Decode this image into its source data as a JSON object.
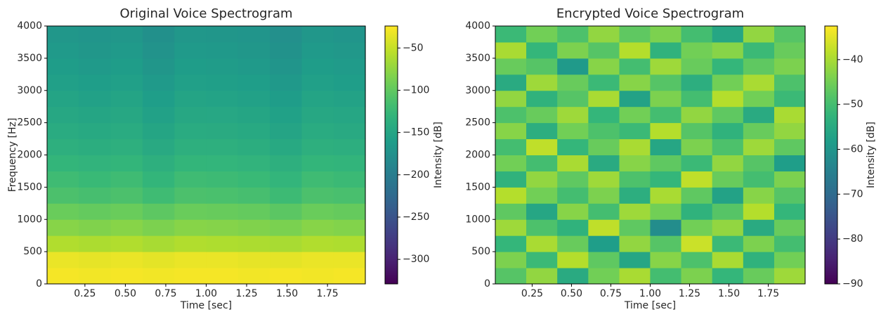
{
  "chart_data": [
    {
      "type": "heatmap",
      "title": "Original Voice Spectrogram",
      "xlabel": "Time [sec]",
      "ylabel": "Frequency [Hz]",
      "colorbar_label": "Intensity [dB]",
      "colormap": "viridis",
      "x": [
        0.114,
        0.311,
        0.508,
        0.705,
        0.902,
        1.098,
        1.295,
        1.492,
        1.689,
        1.886
      ],
      "y": [
        125,
        375,
        625,
        875,
        1125,
        1375,
        1625,
        1875,
        2125,
        2375,
        2625,
        2875,
        3125,
        3375,
        3625,
        3875
      ],
      "z": [
        [
          -28,
          -29,
          -28,
          -29,
          -28,
          -28,
          -29,
          -28,
          -29,
          -28
        ],
        [
          -33,
          -35,
          -33,
          -36,
          -33,
          -33,
          -35,
          -36,
          -33,
          -33
        ],
        [
          -60,
          -62,
          -60,
          -64,
          -60,
          -61,
          -62,
          -64,
          -60,
          -61
        ],
        [
          -80,
          -83,
          -80,
          -85,
          -80,
          -81,
          -83,
          -86,
          -80,
          -82
        ],
        [
          -95,
          -98,
          -95,
          -102,
          -95,
          -96,
          -98,
          -103,
          -95,
          -97
        ],
        [
          -112,
          -115,
          -112,
          -120,
          -112,
          -113,
          -115,
          -121,
          -112,
          -114
        ],
        [
          -120,
          -123,
          -120,
          -128,
          -120,
          -121,
          -123,
          -129,
          -120,
          -122
        ],
        [
          -128,
          -131,
          -128,
          -136,
          -128,
          -129,
          -131,
          -137,
          -128,
          -130
        ],
        [
          -136,
          -139,
          -136,
          -144,
          -136,
          -137,
          -139,
          -145,
          -136,
          -138
        ],
        [
          -142,
          -145,
          -142,
          -150,
          -142,
          -143,
          -145,
          -151,
          -142,
          -144
        ],
        [
          -147,
          -150,
          -147,
          -155,
          -147,
          -148,
          -150,
          -156,
          -147,
          -149
        ],
        [
          -152,
          -155,
          -152,
          -160,
          -152,
          -153,
          -155,
          -161,
          -152,
          -154
        ],
        [
          -157,
          -160,
          -157,
          -165,
          -157,
          -158,
          -160,
          -166,
          -157,
          -159
        ],
        [
          -161,
          -164,
          -161,
          -169,
          -161,
          -162,
          -164,
          -170,
          -161,
          -163
        ],
        [
          -165,
          -168,
          -165,
          -173,
          -165,
          -166,
          -168,
          -174,
          -165,
          -167
        ],
        [
          -168,
          -171,
          -168,
          -176,
          -168,
          -169,
          -171,
          -177,
          -168,
          -170
        ]
      ],
      "xlim": [
        0.016,
        1.984
      ],
      "ylim": [
        0,
        4000
      ],
      "clim": [
        -329,
        -24
      ],
      "xticks": [
        0.25,
        {
          "value": 0.5,
          "label": "0.50"
        },
        0.75,
        {
          "value": 1,
          "label": "1.00"
        },
        1.25,
        {
          "value": 1.5,
          "label": "1.50"
        },
        1.75
      ],
      "yticks": [
        0,
        500,
        1000,
        1500,
        2000,
        2500,
        3000,
        3500,
        4000
      ],
      "cticks": [
        {
          "value": -50,
          "label": "−50"
        },
        {
          "value": -100,
          "label": "−100"
        },
        {
          "value": -150,
          "label": "−150"
        },
        {
          "value": -200,
          "label": "−200"
        },
        {
          "value": -250,
          "label": "−250"
        },
        {
          "value": -300,
          "label": "−300"
        }
      ]
    },
    {
      "type": "heatmap",
      "title": "Encrypted Voice Spectrogram",
      "xlabel": "Time [sec]",
      "colorbar_label": "Intensity [dB]",
      "colormap": "viridis",
      "x": [
        0.114,
        0.311,
        0.508,
        0.705,
        0.902,
        1.098,
        1.295,
        1.492,
        1.689,
        1.886
      ],
      "y": [
        125,
        375,
        625,
        875,
        1125,
        1375,
        1625,
        1875,
        2125,
        2375,
        2625,
        2875,
        3125,
        3375,
        3625,
        3875
      ],
      "z": [
        [
          -48,
          -42,
          -55,
          -45,
          -40,
          -50,
          -44,
          -52,
          -46,
          -41
        ],
        [
          -44,
          -51,
          -39,
          -47,
          -56,
          -43,
          -49,
          -40,
          -53,
          -45
        ],
        [
          -52,
          -40,
          -46,
          -58,
          -42,
          -48,
          -37,
          -51,
          -44,
          -50
        ],
        [
          -41,
          -49,
          -53,
          -38,
          -47,
          -62,
          -45,
          -42,
          -55,
          -46
        ],
        [
          -47,
          -56,
          -43,
          -50,
          -41,
          -45,
          -53,
          -48,
          -39,
          -52
        ],
        [
          -39,
          -45,
          -50,
          -44,
          -54,
          -40,
          -47,
          -57,
          -43,
          -48
        ],
        [
          -53,
          -42,
          -47,
          -41,
          -49,
          -52,
          -38,
          -46,
          -50,
          -44
        ],
        [
          -45,
          -50,
          -40,
          -55,
          -43,
          -47,
          -51,
          -42,
          -48,
          -58
        ],
        [
          -50,
          -38,
          -52,
          -46,
          -40,
          -56,
          -44,
          -49,
          -41,
          -47
        ],
        [
          -43,
          -54,
          -45,
          -49,
          -51,
          -39,
          -48,
          -53,
          -46,
          -42
        ],
        [
          -49,
          -46,
          -41,
          -52,
          -45,
          -50,
          -42,
          -47,
          -55,
          -40
        ],
        [
          -42,
          -53,
          -48,
          -40,
          -57,
          -44,
          -50,
          -39,
          -45,
          -51
        ],
        [
          -55,
          -41,
          -46,
          -51,
          -43,
          -48,
          -54,
          -45,
          -40,
          -49
        ],
        [
          -46,
          -48,
          -59,
          -43,
          -50,
          -41,
          -46,
          -52,
          -47,
          -44
        ],
        [
          -40,
          -52,
          -44,
          -48,
          -39,
          -53,
          -45,
          -43,
          -51,
          -46
        ],
        [
          -51,
          -45,
          -49,
          -42,
          -47,
          -44,
          -50,
          -56,
          -42,
          -48
        ]
      ],
      "xlim": [
        0.016,
        1.984
      ],
      "ylim": [
        0,
        4000
      ],
      "clim": [
        -90,
        -32.5
      ],
      "xticks": [
        0.25,
        {
          "value": 0.5,
          "label": "0.50"
        },
        0.75,
        {
          "value": 1,
          "label": "1.00"
        },
        1.25,
        {
          "value": 1.5,
          "label": "1.50"
        },
        1.75
      ],
      "yticks": [
        0,
        500,
        1000,
        1500,
        2000,
        2500,
        3000,
        3500,
        4000
      ],
      "cticks": [
        {
          "value": -40,
          "label": "−40"
        },
        {
          "value": -50,
          "label": "−50"
        },
        {
          "value": -60,
          "label": "−60"
        },
        {
          "value": -70,
          "label": "−70"
        },
        {
          "value": -80,
          "label": "−80"
        },
        {
          "value": -90,
          "label": "−90"
        }
      ]
    }
  ]
}
